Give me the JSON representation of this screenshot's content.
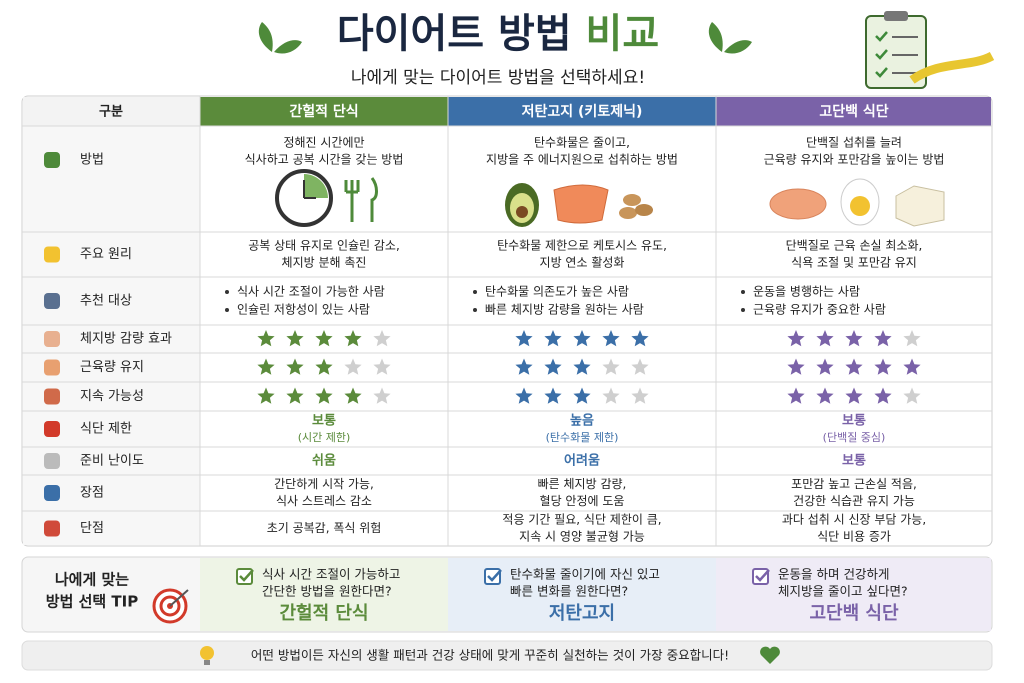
{
  "header": {
    "title": "다이어트 방법",
    "title_highlight": "비교",
    "subtitle": "나에게 맞는 다이어트 방법을 선택하세요!"
  },
  "table": {
    "corner": "구분",
    "columns": [
      "간헐적 단식",
      "저탄고지 (키토제닉)",
      "고단백 식단"
    ],
    "rows": [
      {
        "label": "방법",
        "cells": [
          [
            "정해진 시간에만",
            "식사하고 공복 시간을 갖는 방법"
          ],
          [
            "탄수화물은 줄이고,",
            "지방을 주 에너지원으로 섭취하는 방법"
          ],
          [
            "단백질 섭취를 늘려",
            "근육량 유지와 포만감을 높이는 방법"
          ]
        ]
      },
      {
        "label": "주요 원리",
        "cells": [
          [
            "공복 상태 유지로 인슐린 감소,",
            "체지방 분해 촉진"
          ],
          [
            "탄수화물 제한으로 케토시스 유도,",
            "지방 연소 활성화"
          ],
          [
            "단백질로 근육 손실 최소화,",
            "식욕 조절 및 포만감 유지"
          ]
        ]
      },
      {
        "label": "추천 대상",
        "bullets": [
          [
            "식사 시간 조절이 가능한 사람",
            "인슐린 저항성이 있는 사람"
          ],
          [
            "탄수화물 의존도가 높은 사람",
            "빠른 체지방 감량을 원하는 사람"
          ],
          [
            "운동을 병행하는 사람",
            "근육량 유지가 중요한 사람"
          ]
        ]
      },
      {
        "label": "체지방 감량 효과",
        "ratings": [
          4,
          5,
          4
        ]
      },
      {
        "label": "근육량 유지",
        "ratings": [
          3,
          3,
          5
        ]
      },
      {
        "label": "지속 가능성",
        "ratings": [
          4,
          3,
          4
        ]
      },
      {
        "label": "식단 제한",
        "grades": [
          {
            "text": "보통",
            "note": "(시간 제한)"
          },
          {
            "text": "높음",
            "note": "(탄수화물 제한)"
          },
          {
            "text": "보통",
            "note": "(단백질 중심)"
          }
        ]
      },
      {
        "label": "준비 난이도",
        "grades": [
          {
            "text": "쉬움"
          },
          {
            "text": "어려움"
          },
          {
            "text": "보통"
          }
        ]
      },
      {
        "label": "장점",
        "cells": [
          [
            "간단하게 시작 가능,",
            "식사 스트레스 감소"
          ],
          [
            "빠른 체지방 감량,",
            "혈당 안정에 도움"
          ],
          [
            "포만감 높고 근손실 적음,",
            "건강한 식습관 유지 가능"
          ]
        ]
      },
      {
        "label": "단점",
        "cells": [
          [
            "초기 공복감, 폭식 위험"
          ],
          [
            "적응 기간 필요, 식단 제한이 큼,",
            "지속 시 영양 불균형 가능"
          ],
          [
            "과다 섭취 시 신장 부담 가능,",
            "식단 비용 증가"
          ]
        ]
      }
    ]
  },
  "tip": {
    "label": [
      "나에게 맞는",
      "방법 선택 TIP"
    ],
    "items": [
      {
        "lines": [
          "식사 시간 조절이 가능하고",
          "간단한 방법을 원한다면?"
        ],
        "answer": "간헐적 단식"
      },
      {
        "lines": [
          "탄수화물 줄이기에 자신 있고",
          "빠른 변화를 원한다면?"
        ],
        "answer": "저탄고지"
      },
      {
        "lines": [
          "운동을 하며 건강하게",
          "체지방을 줄이고 싶다면?"
        ],
        "answer": "고단백 식단"
      }
    ]
  },
  "footer": "어떤 방법이든 자신의 생활 패턴과 건강 상태에 맞게 꾸준히 실천하는 것이 가장 중요합니다!"
}
